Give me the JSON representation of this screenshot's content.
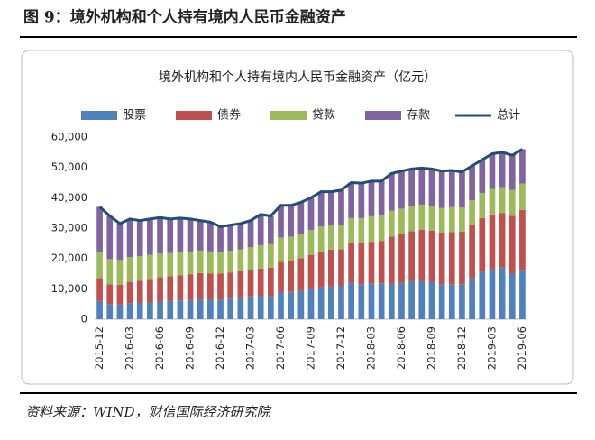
{
  "header": {
    "title": "图 9：境外机构和个人持有境内人民币金融资产"
  },
  "source": "资料来源：WIND，财信国际经济研究院",
  "chart_data": {
    "type": "bar",
    "stacked": true,
    "title": "境外机构和个人持有境内人民币金融资产（亿元）",
    "categories": [
      "2015-12",
      null,
      null,
      "2016-03",
      null,
      null,
      "2016-06",
      null,
      null,
      "2016-09",
      null,
      null,
      "2016-12",
      null,
      null,
      "2017-03",
      null,
      null,
      "2017-06",
      null,
      null,
      "2017-09",
      null,
      null,
      "2017-12",
      null,
      null,
      "2018-03",
      null,
      null,
      "2018-06",
      null,
      null,
      "2018-09",
      null,
      null,
      "2018-12",
      null,
      null,
      "2019-03",
      null,
      null,
      "2019-06"
    ],
    "series": [
      {
        "name": "股票",
        "color": "#4f81bd",
        "values": [
          6000,
          5000,
          4800,
          5300,
          5500,
          5500,
          5800,
          6000,
          6200,
          6300,
          6500,
          6400,
          6500,
          6800,
          7200,
          7500,
          7700,
          7600,
          8900,
          9000,
          9300,
          9800,
          10500,
          10800,
          11000,
          12000,
          11500,
          11800,
          11800,
          11700,
          12000,
          12500,
          12500,
          12200,
          11500,
          11500,
          11500,
          13500,
          15500,
          16500,
          17000,
          15000,
          16000
        ]
      },
      {
        "name": "债券",
        "color": "#c0504d",
        "values": [
          7500,
          6500,
          6500,
          7000,
          7200,
          7800,
          8000,
          8100,
          8300,
          8500,
          8700,
          8600,
          8500,
          8500,
          8600,
          8800,
          9000,
          9400,
          10000,
          10200,
          10800,
          11400,
          11800,
          12100,
          12000,
          13000,
          13500,
          13700,
          14000,
          15500,
          16000,
          16500,
          17000,
          17000,
          17000,
          17200,
          17300,
          17500,
          17800,
          18000,
          18000,
          19000,
          20000
        ]
      },
      {
        "name": "贷款",
        "color": "#9bbb59",
        "values": [
          8500,
          8300,
          8200,
          8200,
          8100,
          7900,
          7900,
          7700,
          7600,
          7500,
          7400,
          7300,
          7000,
          7200,
          7200,
          7400,
          7600,
          7700,
          8000,
          8000,
          8100,
          8200,
          8200,
          8100,
          8000,
          8300,
          8300,
          8400,
          8300,
          8500,
          8400,
          8300,
          8200,
          8200,
          8100,
          8200,
          8000,
          8200,
          8300,
          8400,
          8500,
          8600,
          8700
        ]
      },
      {
        "name": "存款",
        "color": "#8064a2",
        "values": [
          15000,
          14200,
          12000,
          12500,
          11700,
          11800,
          11800,
          11200,
          11200,
          10700,
          9900,
          9700,
          8500,
          8500,
          8500,
          8800,
          10200,
          9300,
          10600,
          10300,
          10300,
          10600,
          11500,
          11000,
          11500,
          11700,
          11500,
          11600,
          11400,
          12300,
          12400,
          12200,
          12100,
          12100,
          12200,
          12100,
          11700,
          11300,
          10900,
          11600,
          11500,
          11400,
          11300
        ]
      },
      {
        "name": "总计",
        "color": "#1f4e79",
        "type": "line",
        "values": [
          37000,
          34000,
          31500,
          33000,
          32500,
          33000,
          33500,
          33000,
          33300,
          33000,
          32500,
          32000,
          30500,
          31000,
          31500,
          32500,
          34500,
          34000,
          37500,
          37500,
          38500,
          40000,
          42000,
          42000,
          42500,
          45000,
          44800,
          45500,
          45500,
          48000,
          48800,
          49500,
          49800,
          49500,
          48800,
          49000,
          48500,
          50500,
          52500,
          54500,
          55000,
          54000,
          56000
        ]
      }
    ],
    "ylim": [
      0,
      60000
    ],
    "yticks": [
      0,
      {
        "value": 10000,
        "label": "10,000"
      },
      {
        "value": 20000,
        "label": "20,000"
      },
      {
        "value": 30000,
        "label": "30,000"
      },
      {
        "value": 40000,
        "label": "40,000"
      },
      {
        "value": 50000,
        "label": "50,000"
      },
      {
        "value": 60000,
        "label": "60,000"
      }
    ],
    "grid": false,
    "legend": "top"
  }
}
